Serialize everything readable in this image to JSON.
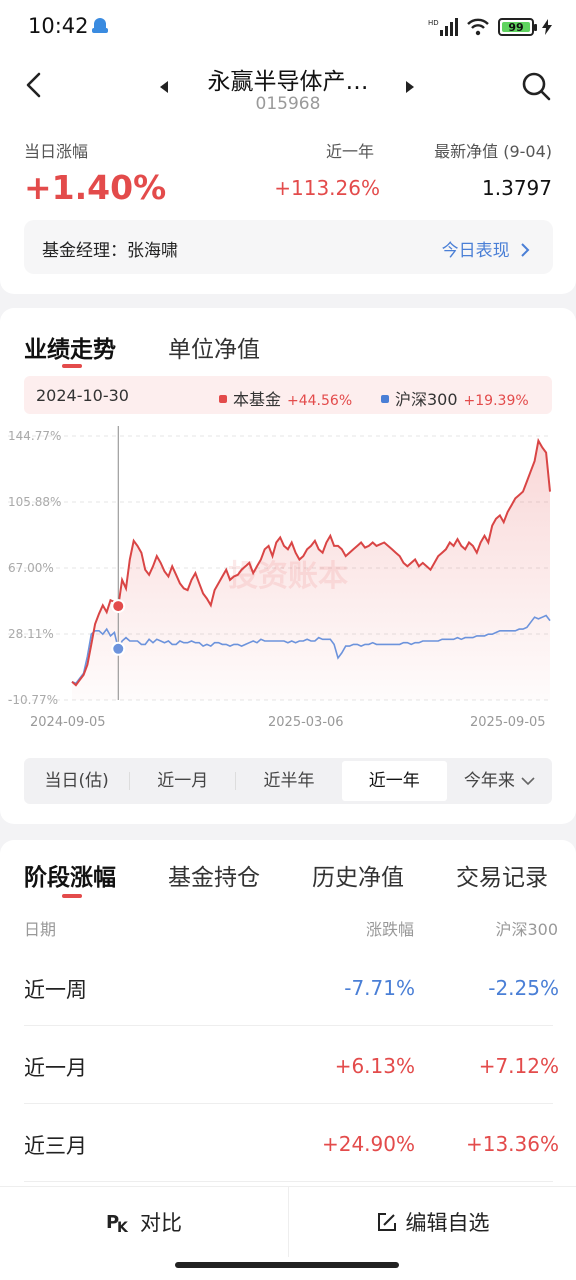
{
  "status": {
    "time": "10:42",
    "battery": "99"
  },
  "header": {
    "title": "永赢半导体产…",
    "code": "015968"
  },
  "metrics": {
    "today_label": "当日涨幅",
    "today_value": "+1.40%",
    "year_label": "近一年",
    "year_value": "+113.26%",
    "nav_label": "最新净值 (9-04)",
    "nav_value": "1.3797"
  },
  "manager": {
    "text": "基金经理：张海啸",
    "link": "今日表现"
  },
  "chart_tabs": [
    "业绩走势",
    "单位净值"
  ],
  "legend": {
    "date": "2024-10-30",
    "fund_name": "本基金",
    "fund_value": "+44.56%",
    "index_name": "沪深300",
    "index_value": "+19.39%"
  },
  "colors": {
    "fund": "#e34b4b",
    "index": "#4a7fd6"
  },
  "chart_data": {
    "type": "line",
    "y_ticks": [
      "144.77%",
      "105.88%",
      "67.00%",
      "28.11%",
      "-10.77%"
    ],
    "ylim": [
      -10.77,
      144.77
    ],
    "x_ticks": [
      "2024-09-05",
      "2025-03-06",
      "2025-09-05"
    ],
    "watermark": "投资账本",
    "series": [
      {
        "name": "本基金",
        "values": [
          0,
          -2,
          1,
          4,
          10,
          22,
          34,
          40,
          45,
          41,
          48,
          47,
          44.56,
          60,
          55,
          72,
          83,
          80,
          76,
          66,
          63,
          68,
          74,
          70,
          65,
          62,
          68,
          63,
          58,
          55,
          54,
          60,
          64,
          58,
          52,
          49,
          45,
          54,
          58,
          62,
          66,
          60,
          62,
          63,
          66,
          68,
          70,
          64,
          68,
          72,
          78,
          80,
          74,
          82,
          85,
          80,
          78,
          82,
          76,
          72,
          74,
          78,
          80,
          83,
          78,
          76,
          82,
          86,
          80,
          80,
          78,
          74,
          76,
          78,
          80,
          82,
          79,
          80,
          82,
          80,
          81,
          82,
          80,
          78,
          76,
          74,
          70,
          68,
          70,
          72,
          68,
          70,
          68,
          66,
          70,
          74,
          76,
          78,
          82,
          80,
          84,
          80,
          78,
          82,
          80,
          76,
          82,
          86,
          82,
          92,
          96,
          98,
          94,
          100,
          104,
          108,
          110,
          112,
          118,
          124,
          130,
          142,
          138,
          135,
          112
        ]
      },
      {
        "name": "沪深300",
        "values": [
          0,
          -1,
          2,
          5,
          15,
          28,
          30,
          30,
          28,
          31,
          27,
          29,
          19.39,
          24,
          26,
          24,
          24,
          24,
          22,
          22,
          25,
          23,
          25,
          24,
          23,
          24,
          22,
          22,
          24,
          23,
          23,
          24,
          23,
          23,
          21,
          22,
          21,
          23,
          23,
          22,
          22,
          21,
          22,
          22,
          21,
          22,
          23,
          24,
          23,
          25,
          24,
          24,
          24,
          24,
          24,
          24,
          23,
          24,
          23,
          24,
          24,
          25,
          24,
          24,
          26,
          25,
          25,
          25,
          22,
          14,
          17,
          21,
          21,
          22,
          22,
          21,
          22,
          22,
          23,
          22,
          22,
          22,
          22,
          22,
          22,
          22,
          23,
          23,
          22,
          23,
          23,
          24,
          24,
          24,
          24,
          24,
          25,
          25,
          25,
          25,
          26,
          25,
          26,
          26,
          26,
          27,
          27,
          27,
          28,
          28,
          29,
          30,
          30,
          30,
          30,
          30,
          31,
          31,
          32,
          35,
          38,
          37,
          38,
          39,
          36
        ]
      }
    ],
    "marker_index": 12
  },
  "ranges": [
    "当日(估)",
    "近一月",
    "近半年",
    "近一年",
    "今年来"
  ],
  "active_range": 3,
  "lower_tabs": [
    "阶段涨幅",
    "基金持仓",
    "历史净值",
    "交易记录"
  ],
  "table": {
    "headers": [
      "日期",
      "涨跌幅",
      "沪深300"
    ],
    "rows": [
      {
        "label": "近一周",
        "change": "-7.71%",
        "hs300": "-2.25%"
      },
      {
        "label": "近一月",
        "change": "+6.13%",
        "hs300": "+7.12%"
      },
      {
        "label": "近三月",
        "change": "+24.90%",
        "hs300": "+13.36%"
      }
    ]
  },
  "bottom": {
    "compare": "对比",
    "edit": "编辑自选"
  }
}
